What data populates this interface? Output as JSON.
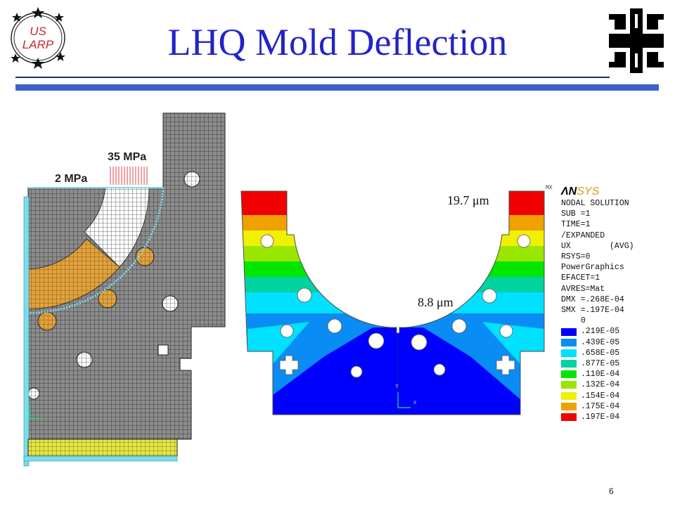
{
  "title": "LHQ Mold Deflection",
  "page_number": "6",
  "logo_left": {
    "line1": "US",
    "line2": "LARP"
  },
  "left_model": {
    "pressure_top": "35 MPa",
    "pressure_side": "2 MPa",
    "colors": {
      "mesh": "#8a8a8a",
      "insert": "#e2a23c",
      "bar": "#e6e63c",
      "side": "#7ddcec"
    }
  },
  "right_model": {
    "annotation_top": "19.7 μm",
    "annotation_mid": "8.8 μm",
    "mx_label": "MX",
    "axis_y": "Y",
    "axis_x": "X"
  },
  "ansys": {
    "logo_an": "ΛN",
    "logo_sys": "SYS",
    "lines": [
      "NODAL SOLUTION",
      "SUB =1",
      "TIME=1",
      "/EXPANDED",
      "UX        (AVG)",
      "RSYS=0",
      "PowerGraphics",
      "EFACET=1",
      "AVRES=Mat",
      "DMX =.268E-04",
      "SMX =.197E-04"
    ],
    "levels": [
      {
        "label": "0",
        "color": ""
      },
      {
        "label": ".219E-05",
        "color": "#0000ff"
      },
      {
        "label": ".439E-05",
        "color": "#0a8cf5"
      },
      {
        "label": ".658E-05",
        "color": "#00e0ff"
      },
      {
        "label": ".877E-05",
        "color": "#00d2a0"
      },
      {
        "label": ".110E-04",
        "color": "#00e600"
      },
      {
        "label": ".132E-04",
        "color": "#9be600"
      },
      {
        "label": ".154E-04",
        "color": "#f0f000"
      },
      {
        "label": ".175E-04",
        "color": "#f0a000"
      },
      {
        "label": ".197E-04",
        "color": "#f00000"
      }
    ]
  }
}
